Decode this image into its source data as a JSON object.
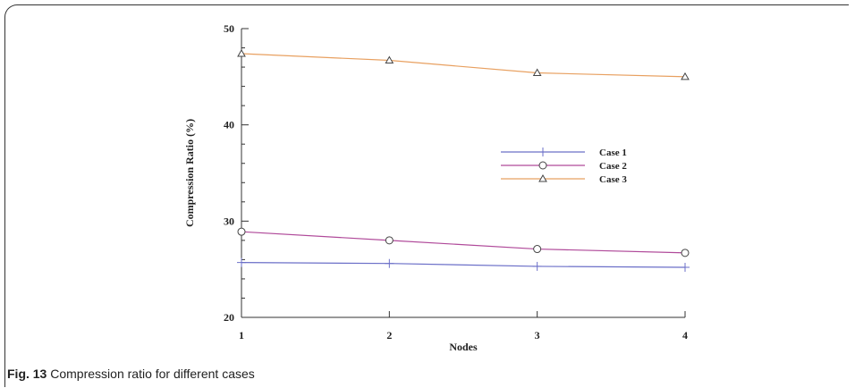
{
  "caption": {
    "label": "Fig. 13",
    "text": "Compression ratio for different cases"
  },
  "chart_data": {
    "type": "line",
    "title": "",
    "xlabel": "Nodes",
    "ylabel": "Compression Ratio (%)",
    "x": [
      1,
      2,
      3,
      4
    ],
    "xticks": [
      "1",
      "2",
      "3",
      "4"
    ],
    "yticks": [
      "20",
      "30",
      "40",
      "50"
    ],
    "xlim": [
      1,
      4
    ],
    "ylim": [
      20,
      50
    ],
    "grid": false,
    "legend_position": "center-right",
    "series": [
      {
        "name": "Case 1",
        "marker": "plus",
        "color": "#6b6fc8",
        "values": [
          25.7,
          25.6,
          25.3,
          25.2
        ]
      },
      {
        "name": "Case 2",
        "marker": "circle",
        "color": "#b04a9a",
        "values": [
          28.9,
          28.0,
          27.1,
          26.7
        ]
      },
      {
        "name": "Case 3",
        "marker": "triangle",
        "color": "#e8a060",
        "values": [
          47.4,
          46.7,
          45.4,
          45.0
        ]
      }
    ]
  }
}
